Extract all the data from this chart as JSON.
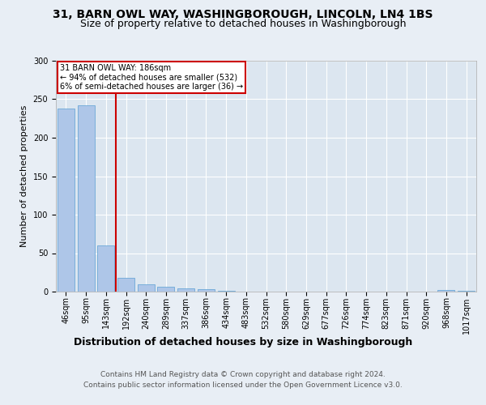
{
  "title": "31, BARN OWL WAY, WASHINGBOROUGH, LINCOLN, LN4 1BS",
  "subtitle": "Size of property relative to detached houses in Washingborough",
  "xlabel": "Distribution of detached houses by size in Washingborough",
  "ylabel": "Number of detached properties",
  "footer_line1": "Contains HM Land Registry data © Crown copyright and database right 2024.",
  "footer_line2": "Contains public sector information licensed under the Open Government Licence v3.0.",
  "bar_labels": [
    "46sqm",
    "95sqm",
    "143sqm",
    "192sqm",
    "240sqm",
    "289sqm",
    "337sqm",
    "386sqm",
    "434sqm",
    "483sqm",
    "532sqm",
    "580sqm",
    "629sqm",
    "677sqm",
    "726sqm",
    "774sqm",
    "823sqm",
    "871sqm",
    "920sqm",
    "968sqm",
    "1017sqm"
  ],
  "bar_values": [
    238,
    242,
    60,
    18,
    9,
    6,
    4,
    3,
    1,
    0,
    0,
    0,
    0,
    0,
    0,
    0,
    0,
    0,
    0,
    2,
    1
  ],
  "bar_color": "#aec6e8",
  "bar_edge_color": "#5a9fd4",
  "annotation_line1": "31 BARN OWL WAY: 186sqm",
  "annotation_line2": "← 94% of detached houses are smaller (532)",
  "annotation_line3": "6% of semi-detached houses are larger (36) →",
  "annotation_color": "#cc0000",
  "background_color": "#e8eef5",
  "plot_bg_color": "#dce6f0",
  "ylim": [
    0,
    300
  ],
  "yticks": [
    0,
    50,
    100,
    150,
    200,
    250,
    300
  ],
  "vline_pos": 2.5,
  "title_fontsize": 10,
  "subtitle_fontsize": 9,
  "ylabel_fontsize": 8,
  "xlabel_fontsize": 9,
  "tick_fontsize": 7,
  "annotation_fontsize": 7,
  "footer_fontsize": 6.5
}
